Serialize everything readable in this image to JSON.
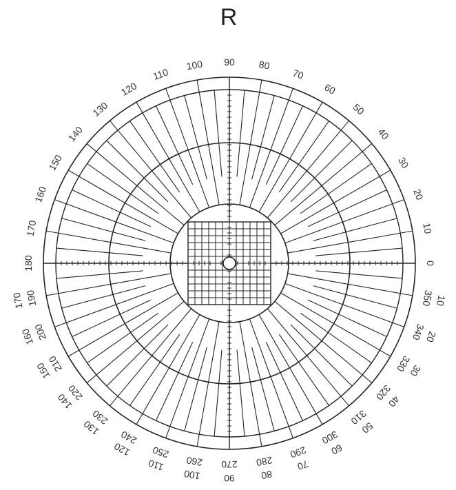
{
  "title": "R",
  "outer_labels": [
    "0",
    "10",
    "20",
    "30",
    "40",
    "50",
    "60",
    "70",
    "80",
    "90",
    "100",
    "110",
    "120",
    "130",
    "140",
    "150",
    "160",
    "170",
    "180",
    "190",
    "200",
    "210",
    "220",
    "230",
    "240",
    "250",
    "260",
    "270",
    "280",
    "290",
    "300",
    "310",
    "320",
    "330",
    "340",
    "350"
  ],
  "inner_labels": [
    "170",
    "160",
    "150",
    "140",
    "130",
    "120",
    "110",
    "100",
    "90",
    "80",
    "70",
    "60",
    "50",
    "40",
    "30",
    "20",
    "10"
  ],
  "meridian_step_degrees": 10,
  "line_color": "#222222"
}
